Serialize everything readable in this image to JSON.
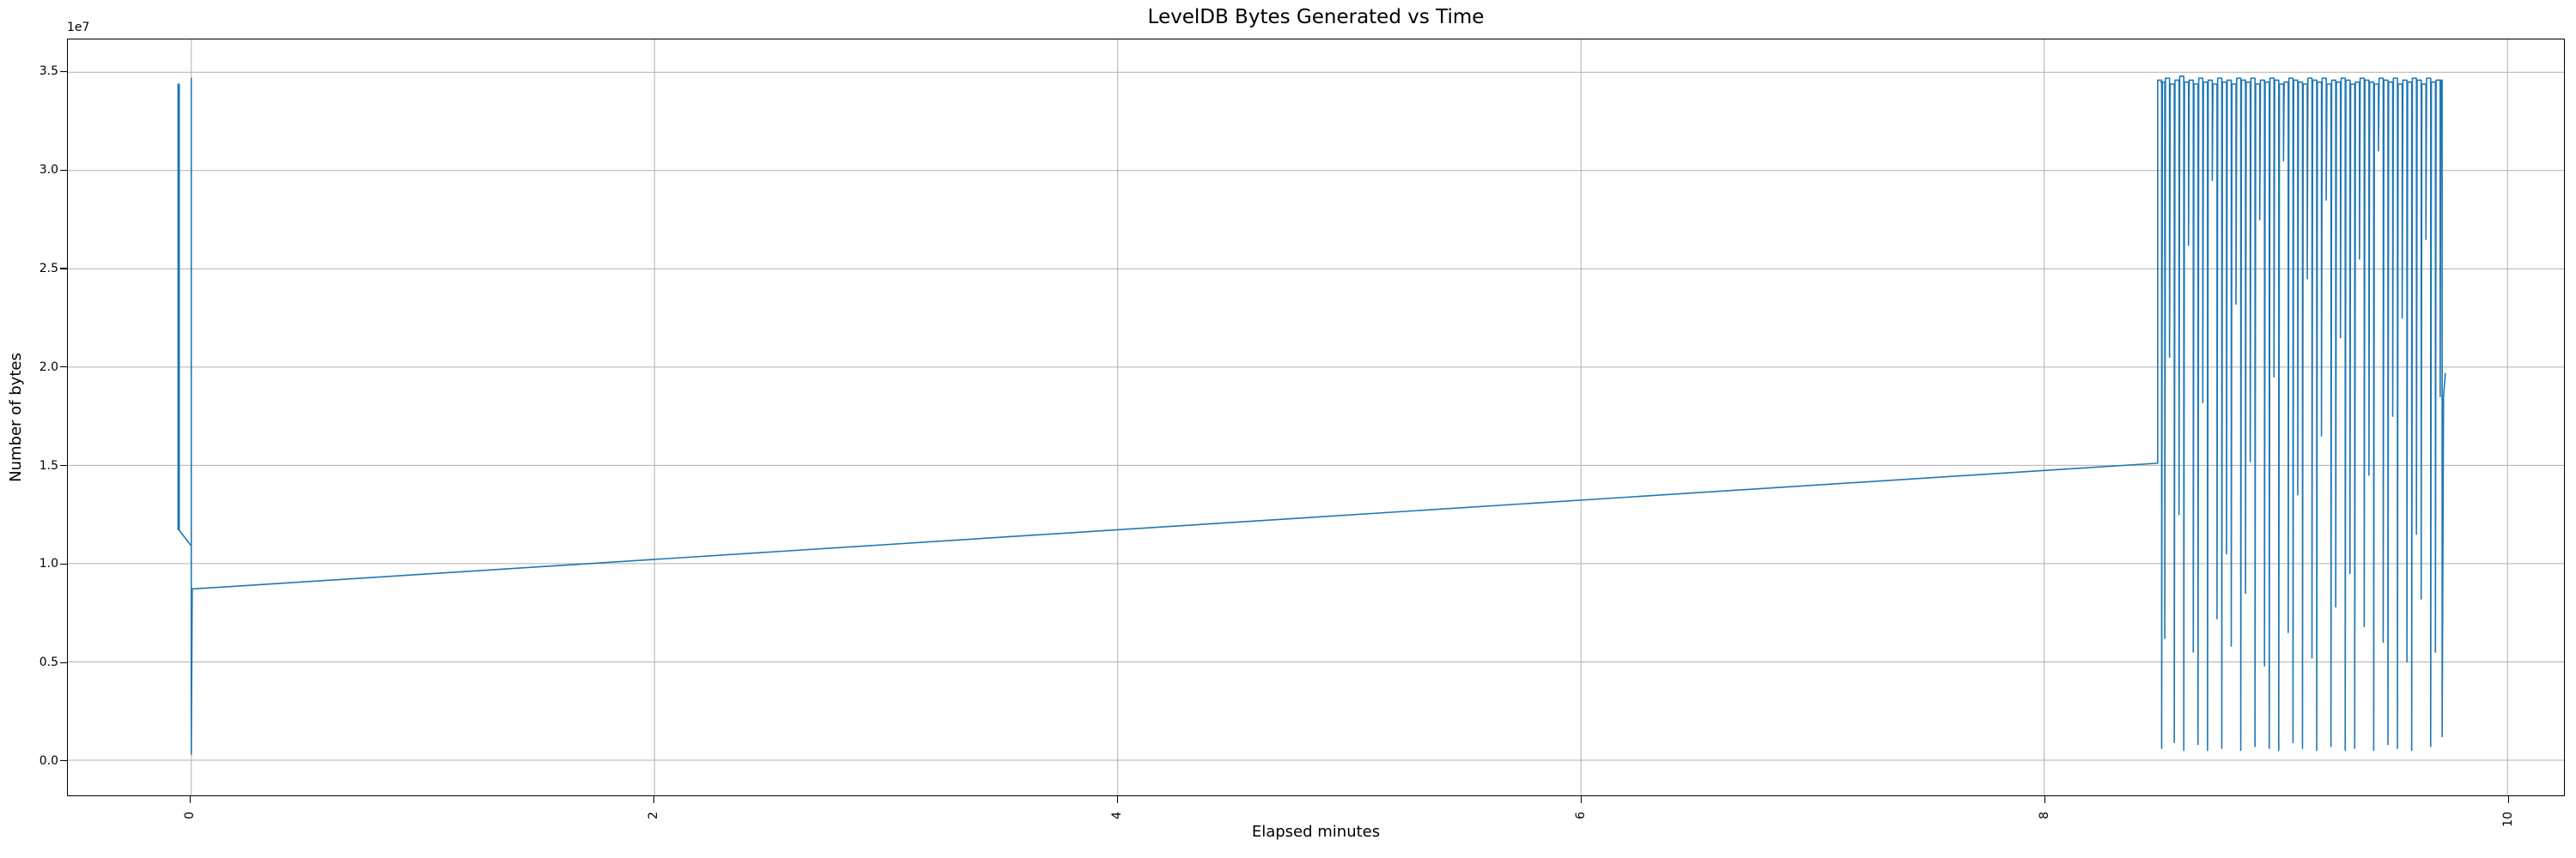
{
  "chart_data": {
    "type": "line",
    "title": "LevelDB Bytes Generated vs Time",
    "xlabel": "Elapsed minutes",
    "ylabel": "Number of bytes",
    "y_offset_text": "1e7",
    "y_unit": "bytes, plotted in units of 1e7",
    "x_unit": "minutes",
    "xlim": [
      -0.533,
      10.244
    ],
    "ylim": [
      -0.179,
      3.667
    ],
    "grid": true,
    "legend_position": "none",
    "line_color": "#1f77b4",
    "grid_color": "#b0b0b0",
    "spine_color": "#000000",
    "xticks": {
      "values": [
        0,
        2,
        4,
        6,
        8,
        10
      ],
      "labels": [
        "0",
        "2",
        "4",
        "6",
        "8",
        "10"
      ],
      "rotation_deg": 90
    },
    "yticks": {
      "values": [
        0.0,
        0.5,
        1.0,
        1.5,
        2.0,
        2.5,
        3.0,
        3.5
      ],
      "labels": [
        "0.0",
        "0.5",
        "1.0",
        "1.5",
        "2.0",
        "2.5",
        "3.0",
        "3.5"
      ]
    },
    "series": [
      {
        "name": "leveldb-bytes-generated",
        "description": "Startup spikes near t=0 (peaks 3.44e7 and 3.47e7, drop to ~0), slow linear climb 0.87e7 -> 1.51e7 between t=0 and t=8.49, then dense sawtooth oscillation until t~9.73 between tops ~3.45e7 and varied lows, ending near 1.97e7",
        "pre_points": [
          [
            -0.057,
            1.17
          ],
          [
            -0.057,
            3.44
          ],
          [
            -0.052,
            3.44
          ],
          [
            -0.052,
            1.17
          ],
          [
            0.0,
            1.09
          ],
          [
            0.0,
            3.47
          ],
          [
            0.0,
            0.03
          ],
          [
            0.004,
            0.871
          ],
          [
            8.49,
            1.511
          ]
        ],
        "burst_teeth_x_top_low": [
          [
            8.507,
            3.46,
            0.06
          ],
          [
            8.5205,
            3.45,
            0.62
          ],
          [
            8.541,
            3.47,
            2.05
          ],
          [
            8.5615,
            3.44,
            0.09
          ],
          [
            8.582,
            3.46,
            1.25
          ],
          [
            8.6025,
            3.48,
            0.05
          ],
          [
            8.623,
            3.45,
            2.62
          ],
          [
            8.6435,
            3.46,
            0.55
          ],
          [
            8.664,
            3.44,
            0.08
          ],
          [
            8.6845,
            3.47,
            1.82
          ],
          [
            8.705,
            3.45,
            0.05
          ],
          [
            8.7255,
            3.46,
            2.95
          ],
          [
            8.746,
            3.44,
            0.72
          ],
          [
            8.7665,
            3.47,
            0.06
          ],
          [
            8.787,
            3.45,
            1.05
          ],
          [
            8.8075,
            3.46,
            0.58
          ],
          [
            8.828,
            3.44,
            2.32
          ],
          [
            8.8485,
            3.47,
            0.05
          ],
          [
            8.869,
            3.46,
            0.85
          ],
          [
            8.8895,
            3.45,
            1.52
          ],
          [
            8.91,
            3.47,
            0.07
          ],
          [
            8.9305,
            3.44,
            2.75
          ],
          [
            8.951,
            3.46,
            0.48
          ],
          [
            8.9715,
            3.45,
            0.06
          ],
          [
            8.992,
            3.47,
            1.95
          ],
          [
            9.0125,
            3.46,
            0.05
          ],
          [
            9.033,
            3.44,
            3.05
          ],
          [
            9.0535,
            3.45,
            0.65
          ],
          [
            9.074,
            3.47,
            0.09
          ],
          [
            9.0945,
            3.46,
            1.35
          ],
          [
            9.115,
            3.45,
            0.06
          ],
          [
            9.1355,
            3.44,
            2.45
          ],
          [
            9.156,
            3.47,
            0.52
          ],
          [
            9.1765,
            3.46,
            0.05
          ],
          [
            9.197,
            3.45,
            1.65
          ],
          [
            9.2175,
            3.47,
            2.85
          ],
          [
            9.238,
            3.44,
            0.07
          ],
          [
            9.2585,
            3.46,
            0.78
          ],
          [
            9.279,
            3.45,
            2.15
          ],
          [
            9.2995,
            3.47,
            0.05
          ],
          [
            9.32,
            3.46,
            0.95
          ],
          [
            9.3405,
            3.44,
            0.06
          ],
          [
            9.361,
            3.45,
            2.55
          ],
          [
            9.3815,
            3.47,
            0.68
          ],
          [
            9.402,
            3.46,
            1.45
          ],
          [
            9.4225,
            3.45,
            0.05
          ],
          [
            9.443,
            3.44,
            3.1
          ],
          [
            9.4635,
            3.47,
            0.6
          ],
          [
            9.484,
            3.46,
            0.08
          ],
          [
            9.5045,
            3.45,
            1.75
          ],
          [
            9.525,
            3.47,
            0.06
          ],
          [
            9.5455,
            3.44,
            2.25
          ],
          [
            9.566,
            3.46,
            0.5
          ],
          [
            9.5865,
            3.45,
            0.05
          ],
          [
            9.607,
            3.47,
            1.15
          ],
          [
            9.6275,
            3.46,
            0.82
          ],
          [
            9.648,
            3.44,
            2.65
          ],
          [
            9.6685,
            3.47,
            0.07
          ],
          [
            9.689,
            3.45,
            0.55
          ],
          [
            9.7095,
            3.46,
            1.85
          ]
        ],
        "end_points": [
          [
            9.7125,
            3.46
          ],
          [
            9.718,
            3.46
          ],
          [
            9.718,
            0.12
          ],
          [
            9.724,
            1.85
          ],
          [
            9.732,
            1.97
          ]
        ]
      }
    ]
  }
}
